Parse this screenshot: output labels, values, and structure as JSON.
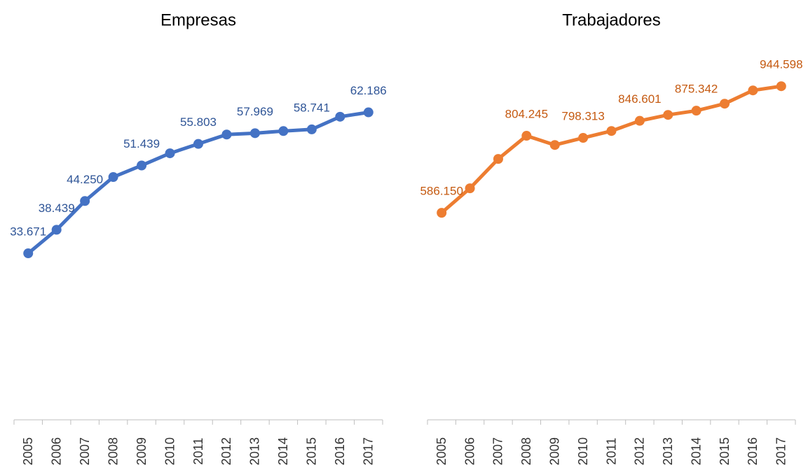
{
  "chart_data": [
    {
      "type": "line",
      "title": "Empresas",
      "categories": [
        "2005",
        "2006",
        "2007",
        "2008",
        "2009",
        "2010",
        "2011",
        "2012",
        "2013",
        "2014",
        "2015",
        "2016",
        "2017"
      ],
      "series": [
        {
          "name": "Empresas",
          "color": "#4472c4",
          "label_color": "#2f5597",
          "values": [
            33671,
            38439,
            44250,
            49100,
            51439,
            53900,
            55803,
            57700,
            57969,
            58400,
            58741,
            61300,
            62186
          ],
          "value_labels": [
            "33.671",
            "38.439",
            "44.250",
            null,
            "51.439",
            null,
            "55.803",
            null,
            "57.969",
            null,
            "58.741",
            null,
            "62.186"
          ]
        }
      ],
      "ylim": [
        0,
        75000
      ]
    },
    {
      "type": "line",
      "title": "Trabajadores",
      "categories": [
        "2005",
        "2006",
        "2007",
        "2008",
        "2009",
        "2010",
        "2011",
        "2012",
        "2013",
        "2014",
        "2015",
        "2016",
        "2017"
      ],
      "series": [
        {
          "name": "Trabajadores",
          "color": "#ed7d31",
          "label_color": "#c55a11",
          "values": [
            586150,
            655500,
            738700,
            804245,
            778200,
            798313,
            817800,
            846601,
            863400,
            875342,
            895100,
            932700,
            944598
          ],
          "value_labels": [
            "586.150",
            null,
            null,
            "804.245",
            null,
            "798.313",
            null,
            "846.601",
            null,
            "875.342",
            null,
            null,
            "944.598"
          ]
        }
      ],
      "ylim": [
        0,
        1050000
      ]
    }
  ]
}
